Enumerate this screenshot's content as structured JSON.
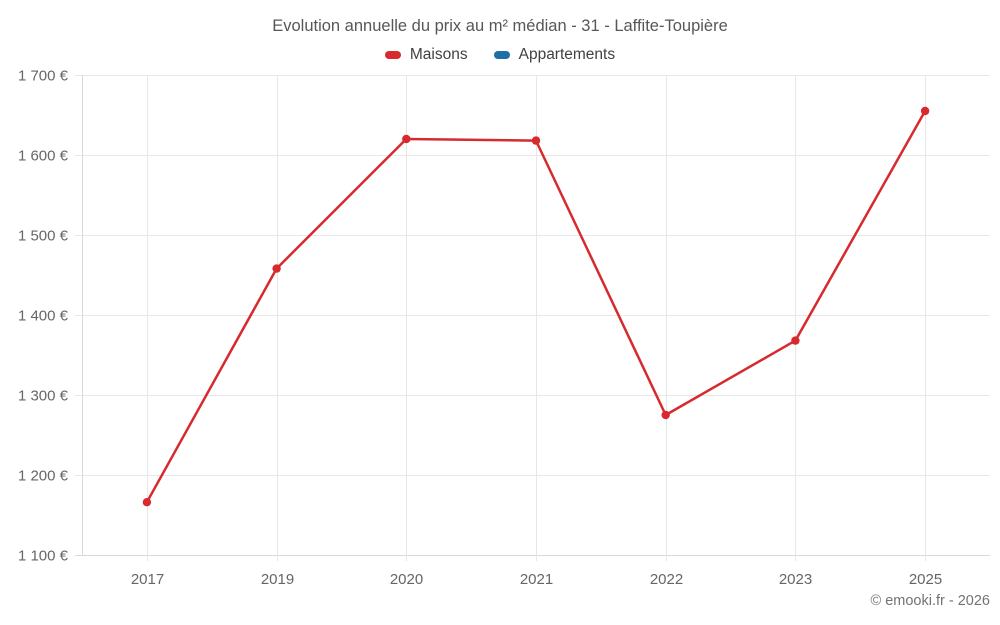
{
  "title": "Evolution annuelle du prix au m² médian - 31 - Laffite-Toupière",
  "legend": {
    "items": [
      {
        "id": "maisons",
        "label": "Maisons",
        "color": "#d62a2f"
      },
      {
        "id": "appartements",
        "label": "Appartements",
        "color": "#1d6fa5"
      }
    ]
  },
  "footer": {
    "credit": "© emooki.fr - 2026"
  },
  "colors": {
    "maisons": "#d62a2f",
    "appartements": "#1d6fa5",
    "gridline": "#e7e7e7",
    "axis_border": "#d9d9d9",
    "tick_text": "#666666"
  },
  "chart_data": {
    "type": "line",
    "title": "Evolution annuelle du prix au m² médian - 31 - Laffite-Toupière",
    "categories": [
      "2017",
      "2019",
      "2020",
      "2021",
      "2022",
      "2023",
      "2025"
    ],
    "series": [
      {
        "name": "Maisons",
        "color": "#d62a2f",
        "values": [
          1166,
          1458,
          1620,
          1618,
          1275,
          1368,
          1655
        ]
      },
      {
        "name": "Appartements",
        "color": "#1d6fa5",
        "values": []
      }
    ],
    "xlabel": "",
    "ylabel": "",
    "ylim": [
      1100,
      1700
    ],
    "ytick_step": 100,
    "ytick_labels": [
      "1 100 €",
      "1 200 €",
      "1 300 €",
      "1 400 €",
      "1 500 €",
      "1 600 €",
      "1 700 €"
    ],
    "grid": true,
    "legend_position": "top",
    "unit": "€ / m²"
  }
}
